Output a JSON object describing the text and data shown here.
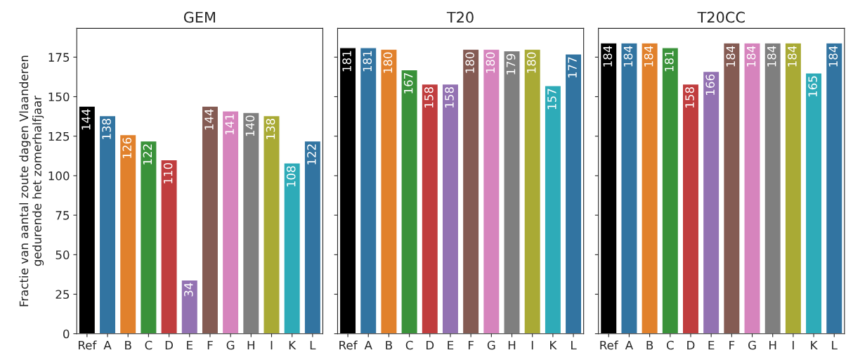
{
  "chart_data": [
    {
      "type": "bar",
      "title": "GEM",
      "ylabel": "Fractie van aantal zoute dagen Vlaanderen\ngedurende het zomerhalfjaar",
      "categories": [
        "Ref",
        "A",
        "B",
        "C",
        "D",
        "E",
        "F",
        "G",
        "H",
        "I",
        "K",
        "L"
      ],
      "values": [
        144,
        138,
        126,
        122,
        110,
        34,
        144,
        141,
        140,
        138,
        108,
        122
      ],
      "colors": [
        "#000000",
        "#3274a1",
        "#e1812c",
        "#3a923a",
        "#c03d3e",
        "#9372b2",
        "#845b53",
        "#d684bd",
        "#7f7f7f",
        "#a9aa35",
        "#2eabb8",
        "#3274a1"
      ],
      "ylim": [
        0,
        193.2
      ],
      "yticks": [
        0,
        25,
        50,
        75,
        100,
        125,
        150,
        175
      ],
      "data_labels": true
    },
    {
      "type": "bar",
      "title": "T20",
      "categories": [
        "Ref",
        "A",
        "B",
        "C",
        "D",
        "E",
        "F",
        "G",
        "H",
        "I",
        "K",
        "L"
      ],
      "values": [
        181,
        181,
        180,
        167,
        158,
        158,
        180,
        180,
        179,
        180,
        157,
        177
      ],
      "colors": [
        "#000000",
        "#3274a1",
        "#e1812c",
        "#3a923a",
        "#c03d3e",
        "#9372b2",
        "#845b53",
        "#d684bd",
        "#7f7f7f",
        "#a9aa35",
        "#2eabb8",
        "#3274a1"
      ],
      "ylim": [
        0,
        193.2
      ],
      "yticks": [
        0,
        25,
        50,
        75,
        100,
        125,
        150,
        175
      ],
      "data_labels": true,
      "tick_labels": "x"
    },
    {
      "type": "bar",
      "title": "T20CC",
      "categories": [
        "Ref",
        "A",
        "B",
        "C",
        "D",
        "E",
        "F",
        "G",
        "H",
        "I",
        "K",
        "L"
      ],
      "values": [
        184,
        184,
        184,
        181,
        158,
        166,
        184,
        184,
        184,
        184,
        165,
        184
      ],
      "colors": [
        "#000000",
        "#3274a1",
        "#e1812c",
        "#3a923a",
        "#c03d3e",
        "#9372b2",
        "#845b53",
        "#d684bd",
        "#7f7f7f",
        "#a9aa35",
        "#2eabb8",
        "#3274a1"
      ],
      "ylim": [
        0,
        193.2
      ],
      "yticks": [
        0,
        25,
        50,
        75,
        100,
        125,
        150,
        175
      ],
      "data_labels": true,
      "tick_labels": "x"
    }
  ]
}
